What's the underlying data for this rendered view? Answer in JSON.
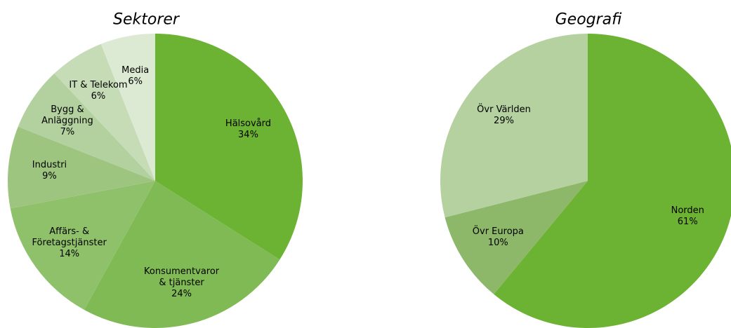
{
  "chart_data": [
    {
      "type": "pie",
      "title": "Sektorer",
      "categories": [
        "Hälsovård",
        "Konsumentvaror\n& tjänster",
        "Affärs- &\nFöretagstjänster",
        "Industri",
        "Bygg &\nAnläggning",
        "IT & Telekom",
        "Media"
      ],
      "values": [
        34,
        24,
        14,
        9,
        7,
        6,
        6
      ],
      "value_labels": [
        "34%",
        "24%",
        "14%",
        "9%",
        "7%",
        "6%",
        "6%"
      ],
      "colors": [
        "#6cb233",
        "#80ba55",
        "#8fc16a",
        "#9ec57f",
        "#b3d19f",
        "#c6dcb7",
        "#dce9d3"
      ]
    },
    {
      "type": "pie",
      "title": "Geografi",
      "categories": [
        "Norden",
        "Övr Europa",
        "Övr Världen"
      ],
      "values": [
        61,
        10,
        29
      ],
      "value_labels": [
        "61%",
        "10%",
        "29%"
      ],
      "colors": [
        "#6cb233",
        "#8db86a",
        "#b5d1a0"
      ]
    }
  ]
}
